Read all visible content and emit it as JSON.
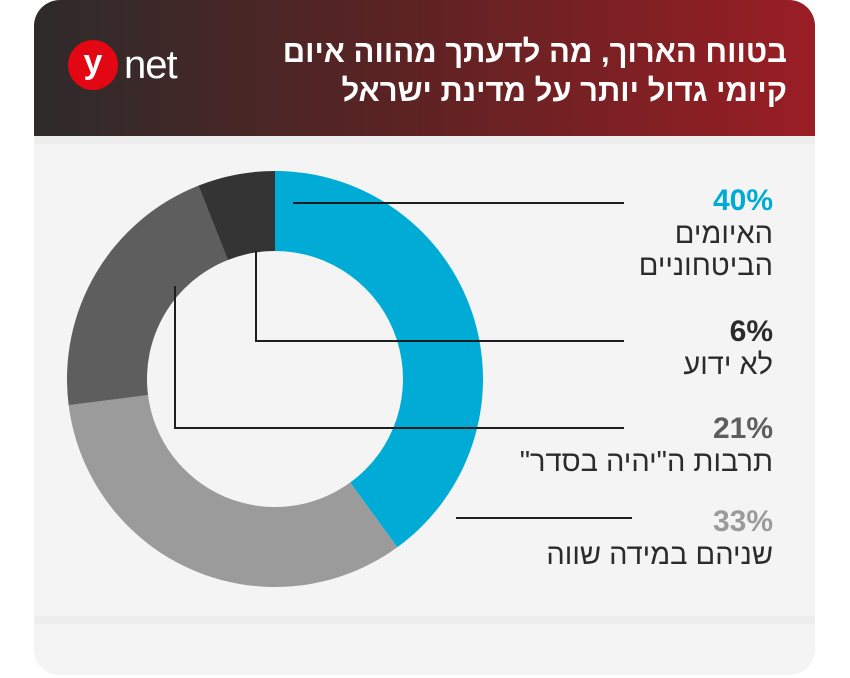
{
  "header": {
    "title": "בטווח הארוך, מה לדעתך מהווה איום קיומי גדול יותר על מדינת ישראל",
    "logo_y": "y",
    "logo_net": "net",
    "logo_color": "#e30613"
  },
  "chart_data": {
    "type": "pie",
    "variant": "donut",
    "title": "בטווח הארוך, מה לדעתך מהווה איום קיומי גדול יותר על מדינת ישראל",
    "slices": [
      {
        "label": "האיומים הביטחוניים",
        "value": 40,
        "display": "40%",
        "color": "#00acd6"
      },
      {
        "label": "שניהם במידה שווה",
        "value": 33,
        "display": "33%",
        "color": "#9b9b9b"
      },
      {
        "label": "תרבות ה\"יהיה בסדר\"",
        "value": 21,
        "display": "21%",
        "color": "#5e5e5e"
      },
      {
        "label": "לא ידוע",
        "value": 6,
        "display": "6%",
        "color": "#343434"
      }
    ]
  }
}
